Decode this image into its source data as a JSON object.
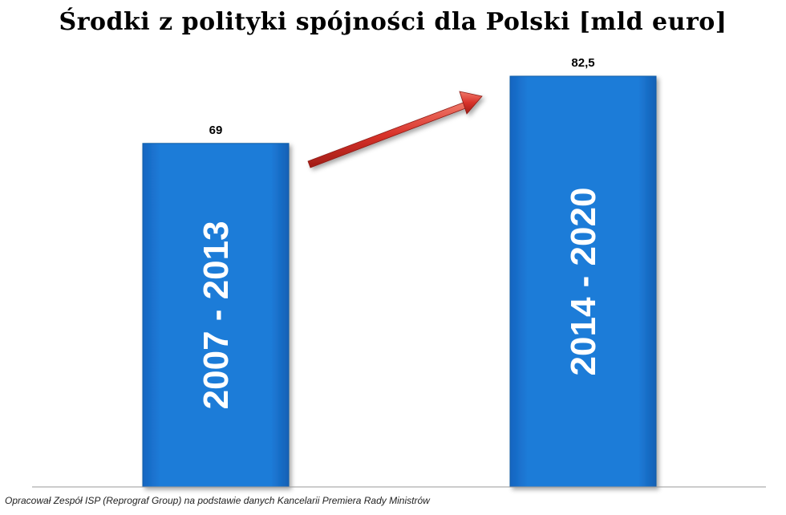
{
  "chart_data": {
    "type": "bar",
    "title": "Środki z polityki spójności dla Polski [mld euro]",
    "categories": [
      "2007 - 2013",
      "2014 - 2020"
    ],
    "values": [
      69,
      82.5
    ],
    "value_labels": [
      "69",
      "82,5"
    ],
    "xlabel": "",
    "ylabel": "",
    "ylim": [
      0,
      82.5
    ],
    "grid": false,
    "legend": "none",
    "colors": {
      "bar": "#1874CD",
      "bar_edge": "#0E5DA8",
      "arrow": "#D8322A",
      "baseline": "#999999"
    },
    "annotations": [
      "increase-arrow"
    ]
  },
  "footer": {
    "source": "Opracował Zespół ISP (Reprograf Group) na podstawie danych Kancelarii Premiera Rady Ministrów"
  }
}
